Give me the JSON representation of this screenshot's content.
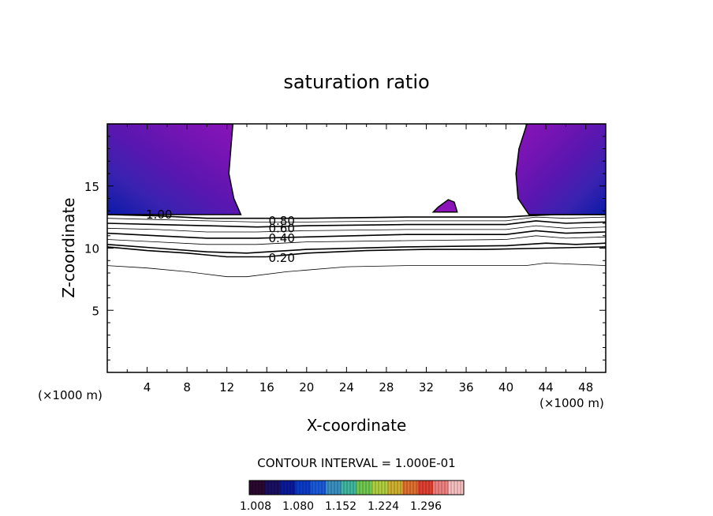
{
  "chart_data": {
    "type": "contour",
    "title": "saturation ratio",
    "xlabel": "X-coordinate",
    "ylabel": "Z-coordinate",
    "x_unit_label_left": "(×1000 m)",
    "x_unit_label_right": "(×1000 m)",
    "xlim": [
      0,
      50
    ],
    "ylim": [
      0,
      20
    ],
    "x_ticks": [
      "4",
      "8",
      "12",
      "16",
      "20",
      "24",
      "28",
      "32",
      "36",
      "40",
      "44",
      "48"
    ],
    "y_ticks": [
      "5",
      "10",
      "15"
    ],
    "contour_interval_label": "CONTOUR INTERVAL = 1.000E-01",
    "contour_labels": [
      {
        "text": "1.00",
        "x": 5.2,
        "z": 12.7
      },
      {
        "text": "0.80",
        "x": 17.5,
        "z": 12.2
      },
      {
        "text": "0.60",
        "x": 17.5,
        "z": 11.6
      },
      {
        "text": "0.40",
        "x": 17.5,
        "z": 10.8
      },
      {
        "text": "0.20",
        "x": 17.5,
        "z": 9.2
      }
    ],
    "contour_lines": [
      {
        "level": 1.0,
        "points": [
          [
            0,
            12.7
          ],
          [
            5,
            12.6
          ],
          [
            10,
            12.4
          ],
          [
            13,
            12.4
          ],
          [
            20,
            12.4
          ],
          [
            30,
            12.5
          ],
          [
            40,
            12.5
          ],
          [
            42,
            12.6
          ],
          [
            45,
            12.7
          ],
          [
            50,
            12.7
          ]
        ]
      },
      {
        "level": 0.9,
        "points": [
          [
            0,
            12.4
          ],
          [
            5,
            12.3
          ],
          [
            10,
            12.2
          ],
          [
            15,
            12.1
          ],
          [
            20,
            12.1
          ],
          [
            30,
            12.2
          ],
          [
            40,
            12.2
          ],
          [
            43,
            12.5
          ],
          [
            46,
            12.4
          ],
          [
            50,
            12.5
          ]
        ]
      },
      {
        "level": 0.8,
        "points": [
          [
            0,
            12.0
          ],
          [
            5,
            11.9
          ],
          [
            10,
            11.8
          ],
          [
            15,
            11.7
          ],
          [
            20,
            11.8
          ],
          [
            30,
            11.9
          ],
          [
            40,
            11.9
          ],
          [
            43,
            12.2
          ],
          [
            46,
            12.0
          ],
          [
            50,
            12.1
          ]
        ]
      },
      {
        "level": 0.7,
        "points": [
          [
            0,
            11.6
          ],
          [
            5,
            11.5
          ],
          [
            10,
            11.3
          ],
          [
            15,
            11.3
          ],
          [
            20,
            11.4
          ],
          [
            30,
            11.5
          ],
          [
            40,
            11.5
          ],
          [
            43,
            11.8
          ],
          [
            46,
            11.6
          ],
          [
            50,
            11.7
          ]
        ]
      },
      {
        "level": 0.6,
        "points": [
          [
            0,
            11.2
          ],
          [
            5,
            11.0
          ],
          [
            10,
            10.8
          ],
          [
            15,
            10.8
          ],
          [
            20,
            10.9
          ],
          [
            30,
            11.1
          ],
          [
            40,
            11.1
          ],
          [
            43,
            11.4
          ],
          [
            46,
            11.2
          ],
          [
            50,
            11.3
          ]
        ]
      },
      {
        "level": 0.5,
        "points": [
          [
            0,
            10.7
          ],
          [
            5,
            10.5
          ],
          [
            10,
            10.3
          ],
          [
            15,
            10.3
          ],
          [
            20,
            10.5
          ],
          [
            30,
            10.6
          ],
          [
            40,
            10.7
          ],
          [
            43,
            11.0
          ],
          [
            46,
            10.8
          ],
          [
            50,
            10.9
          ]
        ]
      },
      {
        "level": 0.4,
        "points": [
          [
            0,
            10.3
          ],
          [
            5,
            10.0
          ],
          [
            10,
            9.7
          ],
          [
            14,
            9.6
          ],
          [
            20,
            9.9
          ],
          [
            30,
            10.1
          ],
          [
            40,
            10.2
          ],
          [
            44,
            10.4
          ],
          [
            47,
            10.3
          ],
          [
            50,
            10.4
          ]
        ]
      },
      {
        "level": 0.2,
        "points": [
          [
            0,
            10.1
          ],
          [
            4,
            9.8
          ],
          [
            8,
            9.6
          ],
          [
            12,
            9.3
          ],
          [
            16,
            9.3
          ],
          [
            20,
            9.6
          ],
          [
            26,
            9.8
          ],
          [
            32,
            9.9
          ],
          [
            38,
            9.9
          ],
          [
            44,
            10.0
          ],
          [
            50,
            10.1
          ]
        ]
      },
      {
        "level": 0.1,
        "points": [
          [
            0,
            8.6
          ],
          [
            4,
            8.4
          ],
          [
            8,
            8.1
          ],
          [
            12,
            7.7
          ],
          [
            14,
            7.7
          ],
          [
            18,
            8.1
          ],
          [
            24,
            8.5
          ],
          [
            30,
            8.6
          ],
          [
            36,
            8.6
          ],
          [
            42,
            8.6
          ],
          [
            44,
            8.8
          ],
          [
            50,
            8.6
          ]
        ]
      }
    ],
    "shaded_regions": [
      {
        "name": "left-supersaturated",
        "polygon": [
          [
            0,
            20
          ],
          [
            12.6,
            20
          ],
          [
            12.4,
            18
          ],
          [
            12.2,
            16
          ],
          [
            12.7,
            14
          ],
          [
            13.4,
            12.7
          ],
          [
            0,
            12.7
          ]
        ]
      },
      {
        "name": "right-supersaturated",
        "polygon": [
          [
            42.1,
            20
          ],
          [
            50,
            20
          ],
          [
            50,
            12.7
          ],
          [
            42.3,
            12.7
          ],
          [
            41.2,
            14
          ],
          [
            41.0,
            16
          ],
          [
            41.3,
            18
          ]
        ]
      },
      {
        "name": "small-cell",
        "polygon": [
          [
            32.7,
            12.9
          ],
          [
            33.2,
            13.3
          ],
          [
            34.2,
            13.9
          ],
          [
            34.8,
            13.7
          ],
          [
            35.0,
            13.2
          ],
          [
            35.1,
            12.9
          ]
        ]
      }
    ],
    "colorbar": {
      "ticks": [
        "1.008",
        "1.080",
        "1.152",
        "1.224",
        "1.296"
      ],
      "colors": [
        "#2a0830",
        "#1a0e60",
        "#0a1a9a",
        "#0a3ac8",
        "#1a5ad8",
        "#3a90c0",
        "#40b8a0",
        "#70c850",
        "#b0d040",
        "#d0b030",
        "#e07030",
        "#e04030",
        "#f08080",
        "#f8c0c0"
      ]
    },
    "grid": false,
    "legend": "none"
  }
}
